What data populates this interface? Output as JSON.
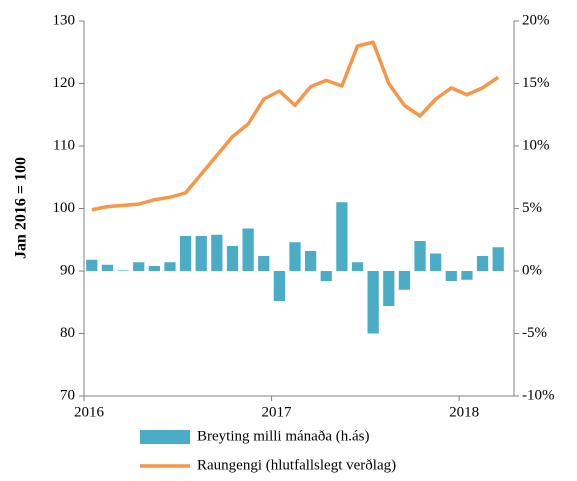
{
  "chart_data": {
    "type": "bar_line",
    "y_label": "Jan 2016 = 100",
    "categories": [
      "2016",
      null,
      null,
      null,
      null,
      null,
      null,
      null,
      null,
      null,
      null,
      null,
      "2017",
      null,
      null,
      null,
      null,
      null,
      null,
      null,
      null,
      null,
      null,
      null,
      "2018",
      null,
      null
    ],
    "ylim": [
      70,
      130
    ],
    "yticks": [
      70,
      80,
      90,
      100,
      110,
      120,
      130
    ],
    "y2lim": [
      -10,
      20
    ],
    "y2ticks": [
      {
        "value": -10,
        "label": "-10%"
      },
      {
        "value": -5,
        "label": "-5%"
      },
      {
        "value": 0,
        "label": "0%"
      },
      {
        "value": 5,
        "label": "5%"
      },
      {
        "value": 10,
        "label": "10%"
      },
      {
        "value": 15,
        "label": "15%"
      },
      {
        "value": 20,
        "label": "20%"
      }
    ],
    "series": [
      {
        "name": "Breyting milli mánaða (h.ás)",
        "color": "#4bacc6",
        "axis": "y2",
        "kind": "bar",
        "values": [
          0.9,
          0.5,
          0.05,
          0.7,
          0.4,
          0.7,
          2.8,
          2.8,
          2.9,
          2.0,
          3.4,
          1.2,
          -2.4,
          2.3,
          1.6,
          -0.8,
          5.5,
          0.7,
          -5.0,
          -2.8,
          -1.5,
          2.4,
          1.4,
          -0.8,
          -0.7,
          1.2,
          1.9
        ]
      },
      {
        "name": "Raungengi (hlutfallslegt verðlag)",
        "color": "#f79646",
        "kind": "line",
        "values": [
          99.8,
          100.3,
          100.5,
          100.7,
          101.4,
          101.8,
          102.5,
          105.5,
          108.5,
          111.5,
          113.5,
          117.5,
          118.8,
          116.5,
          119.5,
          120.5,
          119.6,
          126.0,
          126.6,
          120.0,
          116.5,
          114.8,
          117.5,
          119.3,
          118.2,
          119.3,
          121.0
        ]
      }
    ]
  }
}
